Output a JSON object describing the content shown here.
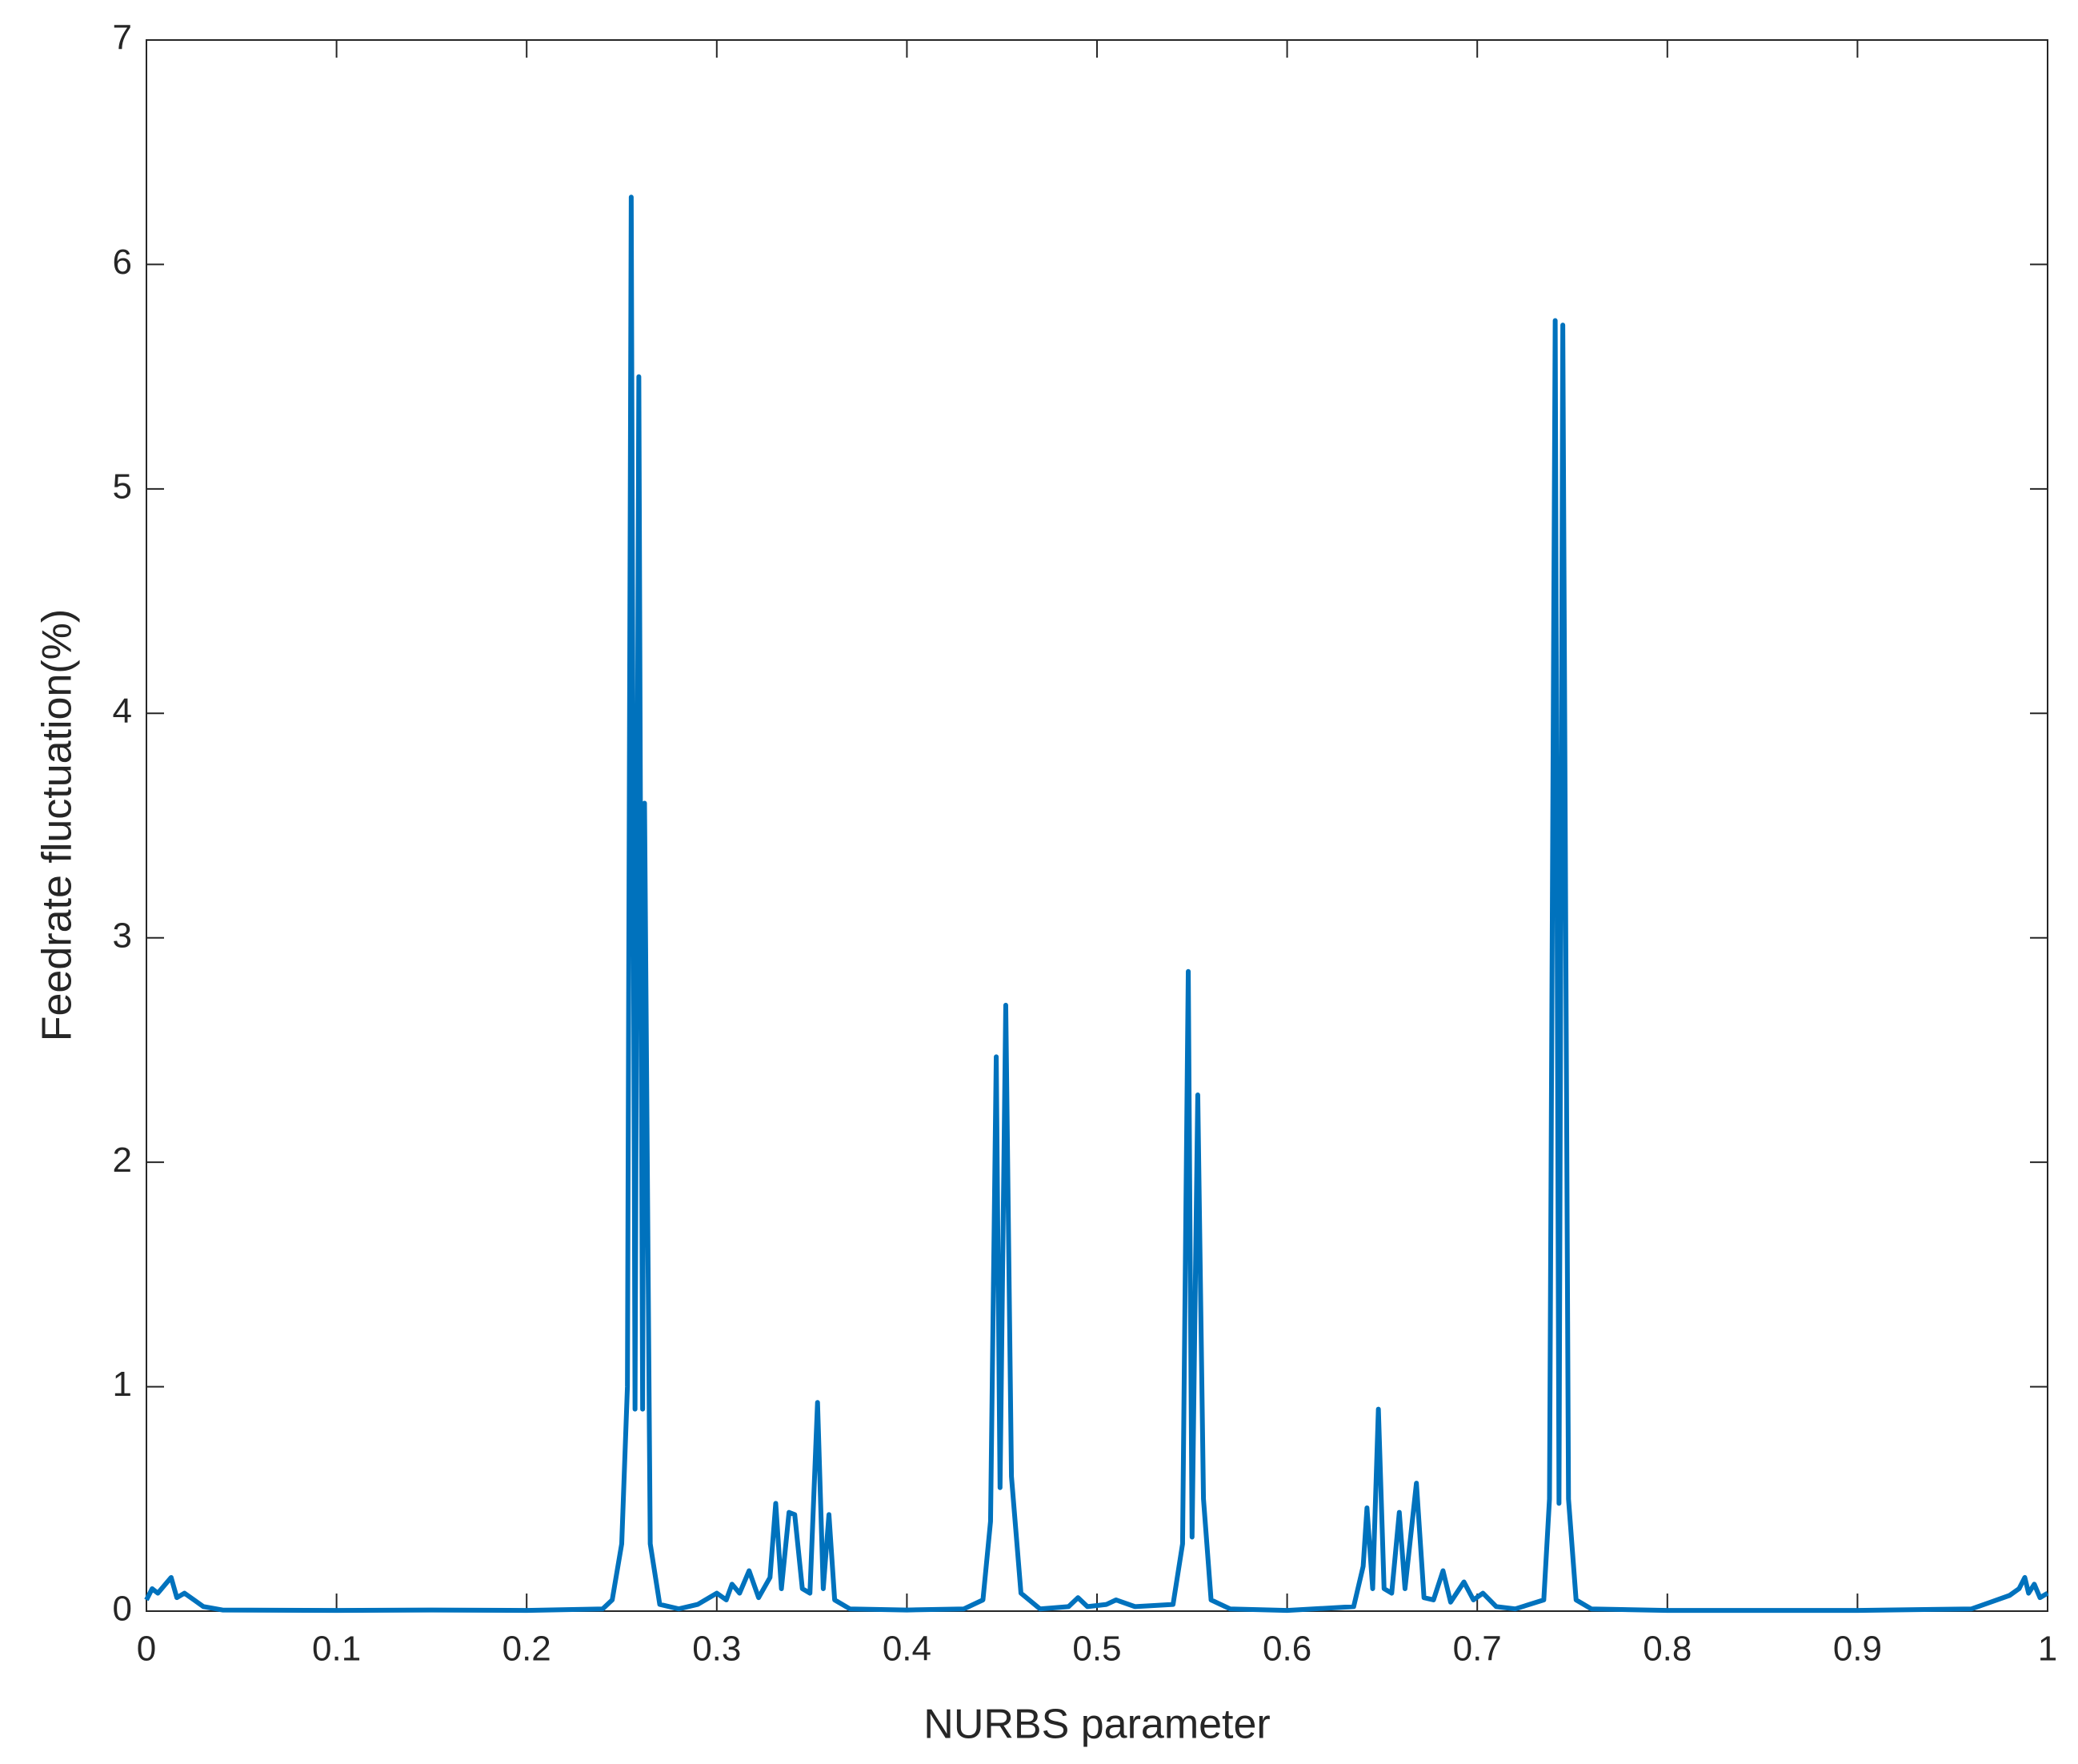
{
  "chart_data": {
    "type": "line",
    "xlabel": "NURBS parameter",
    "ylabel": "Feedrate fluctuation(%)",
    "series": [
      {
        "color": "#0072bd",
        "x": [
          0,
          0.003,
          0.006,
          0.01,
          0.013,
          0.016,
          0.02,
          0.025,
          0.03,
          0.04,
          0.1,
          0.15,
          0.2,
          0.24,
          0.245,
          0.25,
          0.253,
          0.255,
          0.257,
          0.259,
          0.261,
          0.262,
          0.265,
          0.27,
          0.28,
          0.29,
          0.3,
          0.305,
          0.308,
          0.312,
          0.317,
          0.322,
          0.328,
          0.331,
          0.334,
          0.338,
          0.341,
          0.345,
          0.349,
          0.353,
          0.356,
          0.359,
          0.362,
          0.37,
          0.4,
          0.43,
          0.44,
          0.444,
          0.447,
          0.449,
          0.452,
          0.455,
          0.46,
          0.47,
          0.485,
          0.49,
          0.495,
          0.505,
          0.51,
          0.52,
          0.54,
          0.545,
          0.548,
          0.55,
          0.553,
          0.556,
          0.56,
          0.57,
          0.6,
          0.635,
          0.64,
          0.642,
          0.645,
          0.648,
          0.651,
          0.655,
          0.659,
          0.662,
          0.668,
          0.672,
          0.677,
          0.682,
          0.686,
          0.693,
          0.698,
          0.703,
          0.71,
          0.72,
          0.735,
          0.738,
          0.741,
          0.743,
          0.745,
          0.748,
          0.752,
          0.76,
          0.8,
          0.9,
          0.96,
          0.97,
          0.98,
          0.985,
          0.988,
          0.99,
          0.993,
          0.996,
          1
        ],
        "values": [
          0.05,
          0.1,
          0.08,
          0.12,
          0.15,
          0.06,
          0.08,
          0.05,
          0.02,
          0.005,
          0.003,
          0.005,
          0.003,
          0.01,
          0.05,
          0.3,
          1.0,
          6.3,
          0.9,
          5.5,
          0.9,
          3.6,
          0.3,
          0.03,
          0.01,
          0.03,
          0.08,
          0.05,
          0.12,
          0.08,
          0.18,
          0.06,
          0.15,
          0.48,
          0.1,
          0.44,
          0.43,
          0.1,
          0.08,
          0.93,
          0.1,
          0.43,
          0.05,
          0.01,
          0.005,
          0.01,
          0.05,
          0.4,
          2.47,
          0.55,
          2.7,
          0.6,
          0.08,
          0.01,
          0.02,
          0.06,
          0.02,
          0.03,
          0.05,
          0.02,
          0.03,
          0.3,
          2.85,
          0.33,
          2.3,
          0.5,
          0.05,
          0.01,
          0.003,
          0.02,
          0.2,
          0.46,
          0.1,
          0.9,
          0.1,
          0.08,
          0.44,
          0.1,
          0.57,
          0.06,
          0.05,
          0.18,
          0.04,
          0.13,
          0.05,
          0.08,
          0.02,
          0.01,
          0.05,
          0.5,
          5.75,
          0.48,
          5.73,
          0.5,
          0.05,
          0.01,
          0.003,
          0.003,
          0.01,
          0.04,
          0.07,
          0.1,
          0.15,
          0.08,
          0.12,
          0.06,
          0.08
        ]
      }
    ],
    "xlim": [
      0,
      1
    ],
    "xticks": [
      0,
      0.1,
      0.2,
      0.3,
      0.4,
      0.5,
      0.6,
      0.7,
      0.8,
      0.9,
      1
    ],
    "ylim": [
      0,
      7
    ],
    "yticks": [
      0,
      1,
      2,
      3,
      4,
      5,
      6,
      7
    ],
    "grid": false
  }
}
